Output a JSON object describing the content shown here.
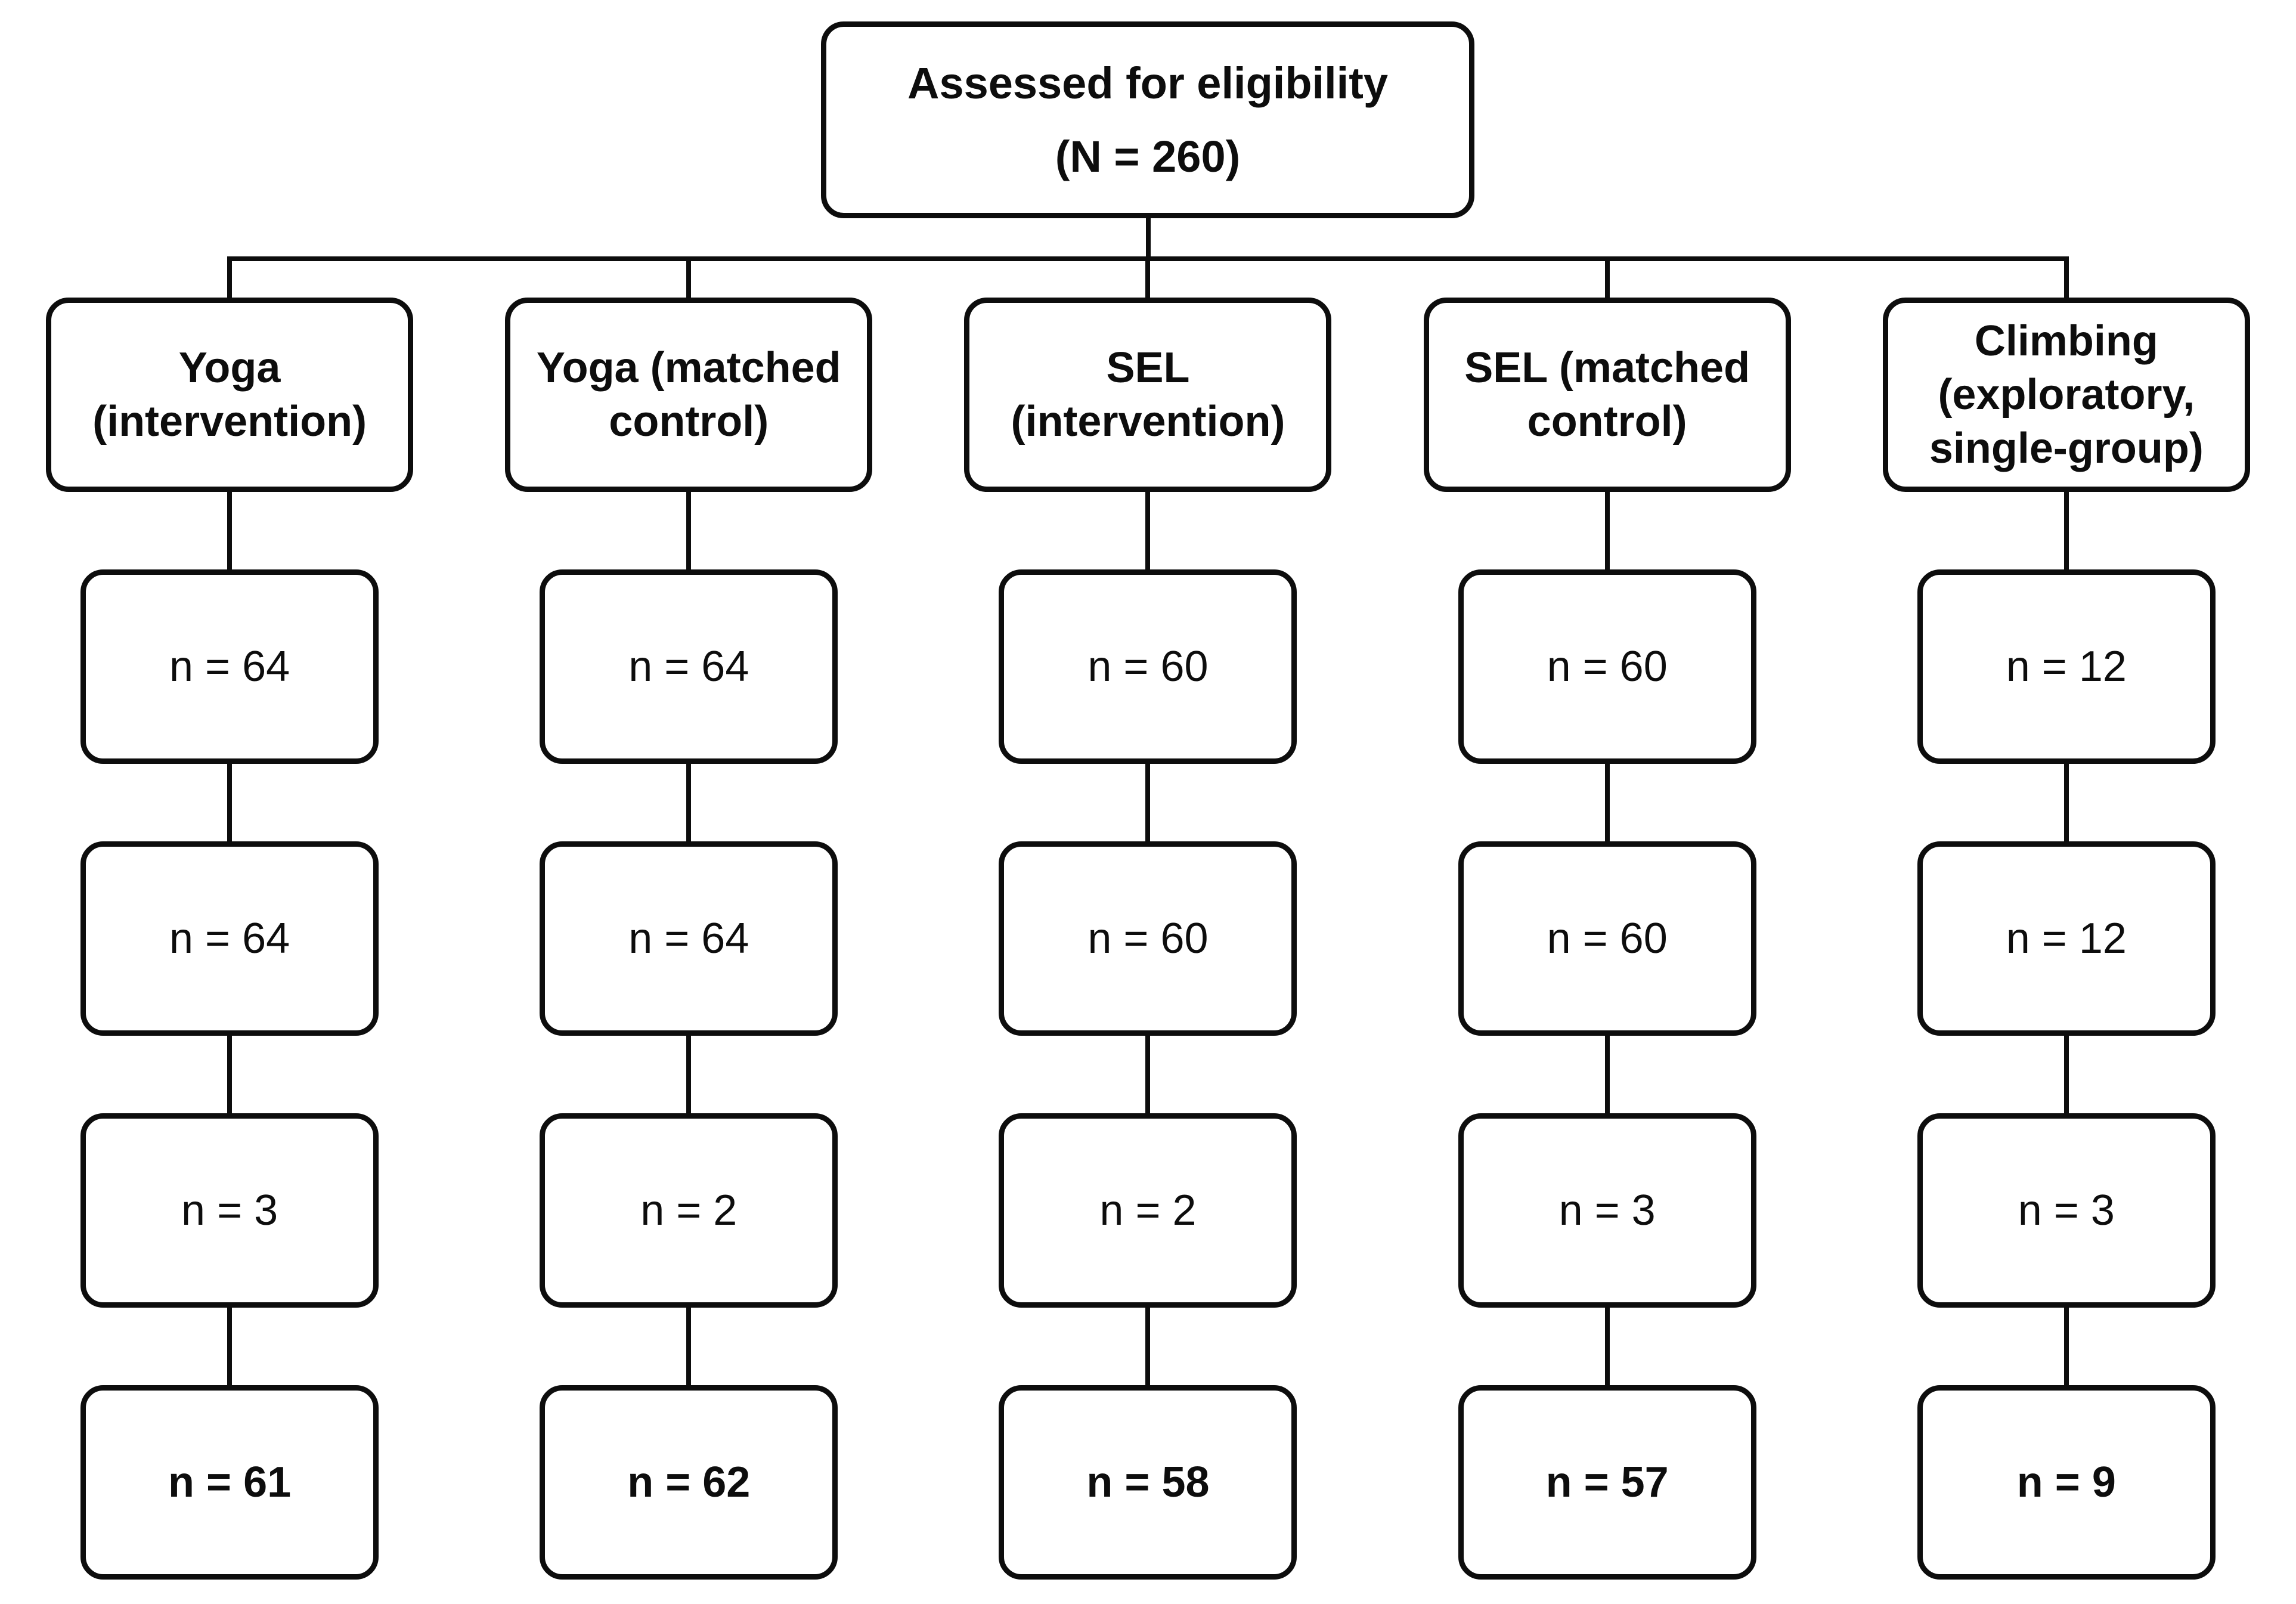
{
  "diagram": {
    "root": {
      "title": "Assessed for eligibility",
      "count": "(N = 260)"
    },
    "columns": [
      {
        "header": "Yoga\n(intervention)",
        "values": [
          "n = 64",
          "n = 64",
          "n = 3"
        ],
        "final": "n = 61"
      },
      {
        "header": "Yoga (matched\ncontrol)",
        "values": [
          "n = 64",
          "n = 64",
          "n = 2"
        ],
        "final": "n = 62"
      },
      {
        "header": "SEL\n(intervention)",
        "values": [
          "n = 60",
          "n = 60",
          "n = 2"
        ],
        "final": "n = 58"
      },
      {
        "header": "SEL (matched\ncontrol)",
        "values": [
          "n = 60",
          "n = 60",
          "n = 3"
        ],
        "final": "n = 57"
      },
      {
        "header": "Climbing\n(exploratory,\nsingle-group)",
        "values": [
          "n = 12",
          "n = 12",
          "n = 3"
        ],
        "final": "n = 9"
      }
    ],
    "colors": {
      "line": "#0d0d0d",
      "background": "#ffffff",
      "text": "#0d0d0d"
    }
  }
}
